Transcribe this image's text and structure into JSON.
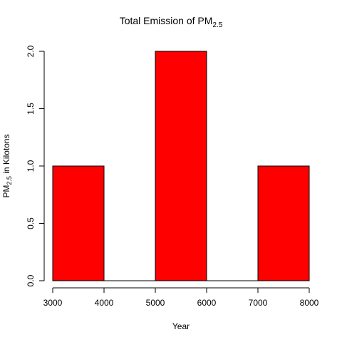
{
  "chart_data": {
    "type": "bar",
    "title_main": "Total Emission of PM",
    "title_sub": "2.5",
    "xlabel": "Year",
    "ylabel_main": "PM",
    "ylabel_sub": "2.5",
    "ylabel_rest": " in Kilotons",
    "bins": [
      {
        "start": 3000,
        "end": 4000,
        "value": 1.0
      },
      {
        "start": 4000,
        "end": 5000,
        "value": 0.0
      },
      {
        "start": 5000,
        "end": 6000,
        "value": 2.0
      },
      {
        "start": 6000,
        "end": 7000,
        "value": 0.0
      },
      {
        "start": 7000,
        "end": 8000,
        "value": 1.0
      }
    ],
    "xlim": [
      3000,
      8000
    ],
    "ylim": [
      0,
      2.0
    ],
    "x_ticks": [
      "3000",
      "4000",
      "5000",
      "6000",
      "7000",
      "8000"
    ],
    "y_ticks": [
      "0.0",
      "0.5",
      "1.0",
      "1.5",
      "2.0"
    ],
    "grid": false,
    "legend": "none",
    "bar_color": "#ff0000"
  }
}
